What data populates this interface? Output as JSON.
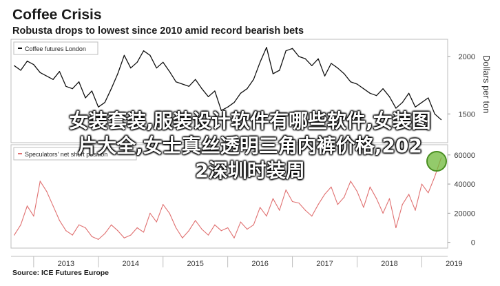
{
  "chart_data": [
    {
      "type": "line",
      "title": "Coffee Crisis",
      "subtitle": "Robusta drops to lowest since 2010 amid record bearish bets",
      "legend": "Coffee futures London",
      "ylabel": "Dollars per ton",
      "ylim": [
        1250,
        2150
      ],
      "yticks": [
        1500,
        2000
      ],
      "grid": false,
      "series": [
        {
          "name": "Coffee futures London",
          "color": "#111111",
          "x": [
            2012.7,
            2012.8,
            2012.9,
            2013.0,
            2013.1,
            2013.2,
            2013.3,
            2013.4,
            2013.5,
            2013.6,
            2013.7,
            2013.8,
            2013.9,
            2014.0,
            2014.1,
            2014.2,
            2014.3,
            2014.4,
            2014.5,
            2014.6,
            2014.7,
            2014.8,
            2014.9,
            2015.0,
            2015.1,
            2015.2,
            2015.3,
            2015.4,
            2015.5,
            2015.6,
            2015.7,
            2015.8,
            2015.9,
            2016.0,
            2016.1,
            2016.2,
            2016.3,
            2016.4,
            2016.5,
            2016.6,
            2016.7,
            2016.8,
            2016.9,
            2017.0,
            2017.1,
            2017.2,
            2017.3,
            2017.4,
            2017.5,
            2017.6,
            2017.7,
            2017.8,
            2017.9,
            2018.0,
            2018.1,
            2018.2,
            2018.3,
            2018.4,
            2018.5,
            2018.6,
            2018.7,
            2018.8,
            2018.9,
            2019.0,
            2019.1,
            2019.2,
            2019.3
          ],
          "values": [
            1920,
            1880,
            1960,
            1930,
            1860,
            1830,
            1800,
            1870,
            1740,
            1720,
            1780,
            1640,
            1700,
            1560,
            1600,
            1720,
            1850,
            2010,
            1900,
            1950,
            2050,
            2010,
            1900,
            1950,
            1870,
            1780,
            1760,
            1740,
            1800,
            1720,
            1650,
            1700,
            1530,
            1560,
            1600,
            1680,
            1720,
            1800,
            1950,
            2080,
            1850,
            1880,
            2050,
            2070,
            2000,
            1980,
            1920,
            1980,
            1830,
            1940,
            1900,
            1850,
            1780,
            1760,
            1720,
            1680,
            1660,
            1720,
            1650,
            1550,
            1600,
            1680,
            1560,
            1600,
            1640,
            1500,
            1450
          ]
        }
      ]
    },
    {
      "type": "line",
      "legend": "Speculators' net short position",
      "ylim": [
        -3000,
        67000
      ],
      "yticks": [
        0,
        20000,
        40000,
        60000
      ],
      "xticks": [
        "2013",
        "2014",
        "2015",
        "2016",
        "2017",
        "2018",
        "2019"
      ],
      "grid": false,
      "series": [
        {
          "name": "Speculators' net short position",
          "color": "#e07070",
          "x": [
            2012.7,
            2012.8,
            2012.9,
            2013.0,
            2013.1,
            2013.2,
            2013.3,
            2013.4,
            2013.5,
            2013.6,
            2013.7,
            2013.8,
            2013.9,
            2014.0,
            2014.1,
            2014.2,
            2014.3,
            2014.4,
            2014.5,
            2014.6,
            2014.7,
            2014.8,
            2014.9,
            2015.0,
            2015.1,
            2015.2,
            2015.3,
            2015.4,
            2015.5,
            2015.6,
            2015.7,
            2015.8,
            2015.9,
            2016.0,
            2016.1,
            2016.2,
            2016.3,
            2016.4,
            2016.5,
            2016.6,
            2016.7,
            2016.8,
            2016.9,
            2017.0,
            2017.1,
            2017.2,
            2017.3,
            2017.4,
            2017.5,
            2017.6,
            2017.7,
            2017.8,
            2017.9,
            2018.0,
            2018.1,
            2018.2,
            2018.3,
            2018.4,
            2018.5,
            2018.6,
            2018.7,
            2018.8,
            2018.9,
            2019.0,
            2019.1,
            2019.2,
            2019.3
          ],
          "values": [
            5000,
            12000,
            25000,
            18000,
            42000,
            35000,
            25000,
            15000,
            8000,
            5000,
            12000,
            10000,
            4000,
            2000,
            6000,
            12000,
            8000,
            3000,
            5000,
            10000,
            7000,
            20000,
            14000,
            26000,
            20000,
            10000,
            3000,
            8000,
            15000,
            9000,
            5000,
            12000,
            8000,
            10000,
            3000,
            14000,
            9000,
            12000,
            24000,
            18000,
            30000,
            22000,
            36000,
            28000,
            27000,
            22000,
            18000,
            26000,
            33000,
            38000,
            26000,
            31000,
            42000,
            35000,
            24000,
            38000,
            30000,
            20000,
            30000,
            10000,
            26000,
            33000,
            22000,
            40000,
            34000,
            45000,
            58000
          ]
        }
      ]
    }
  ],
  "texts": {
    "title": "Coffee Crisis",
    "subtitle": "Robusta drops to lowest since 2010 amid record bearish bets",
    "legend_top": "Coffee futures London",
    "legend_bottom": "Speculators' net short position",
    "ylabel_right": "Dollars per ton",
    "source": "Source: ICE Futures Europe",
    "overlay_line1": "女装套装,服装设计软件有哪些软件,女装图",
    "overlay_line2": "片大全,女士真丝透明三角内裤价格,202",
    "overlay_line3": "2深圳时装周"
  },
  "colors": {
    "top_line": "#111111",
    "bottom_line": "#e07070",
    "highlight_circle": "#6fb83a"
  }
}
